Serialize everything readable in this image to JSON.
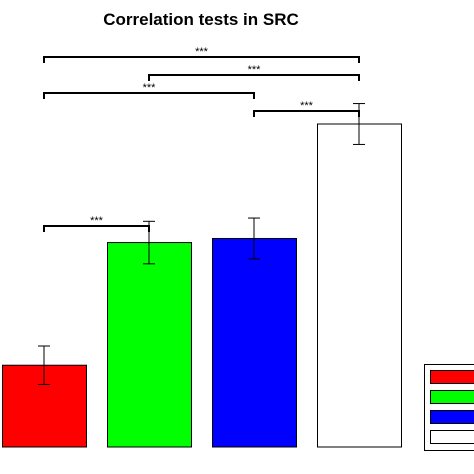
{
  "chart_data": {
    "type": "bar",
    "title": "Correlation tests in SRC",
    "xlabel": "",
    "ylabel": "",
    "ylim": [
      0,
      1
    ],
    "categories": [
      "",
      "",
      "",
      ""
    ],
    "values": [
      0.2,
      0.5,
      0.51,
      0.79
    ],
    "errors": [
      0.047,
      0.052,
      0.05,
      0.05
    ],
    "colors": [
      "#ff0000",
      "#00ff00",
      "#0000ff",
      "#ffffff"
    ],
    "significance": [
      {
        "from": 0,
        "to": 3,
        "label": "***"
      },
      {
        "from": 1,
        "to": 3,
        "label": "***"
      },
      {
        "from": 0,
        "to": 2,
        "label": "***"
      },
      {
        "from": 2,
        "to": 3,
        "label": "***"
      },
      {
        "from": 0,
        "to": 1,
        "label": "***"
      }
    ],
    "legend": {
      "placement": "bottom-right",
      "swatches": [
        "#ff0000",
        "#00ff00",
        "#0000ff",
        "#ffffff"
      ]
    },
    "grid": false
  }
}
